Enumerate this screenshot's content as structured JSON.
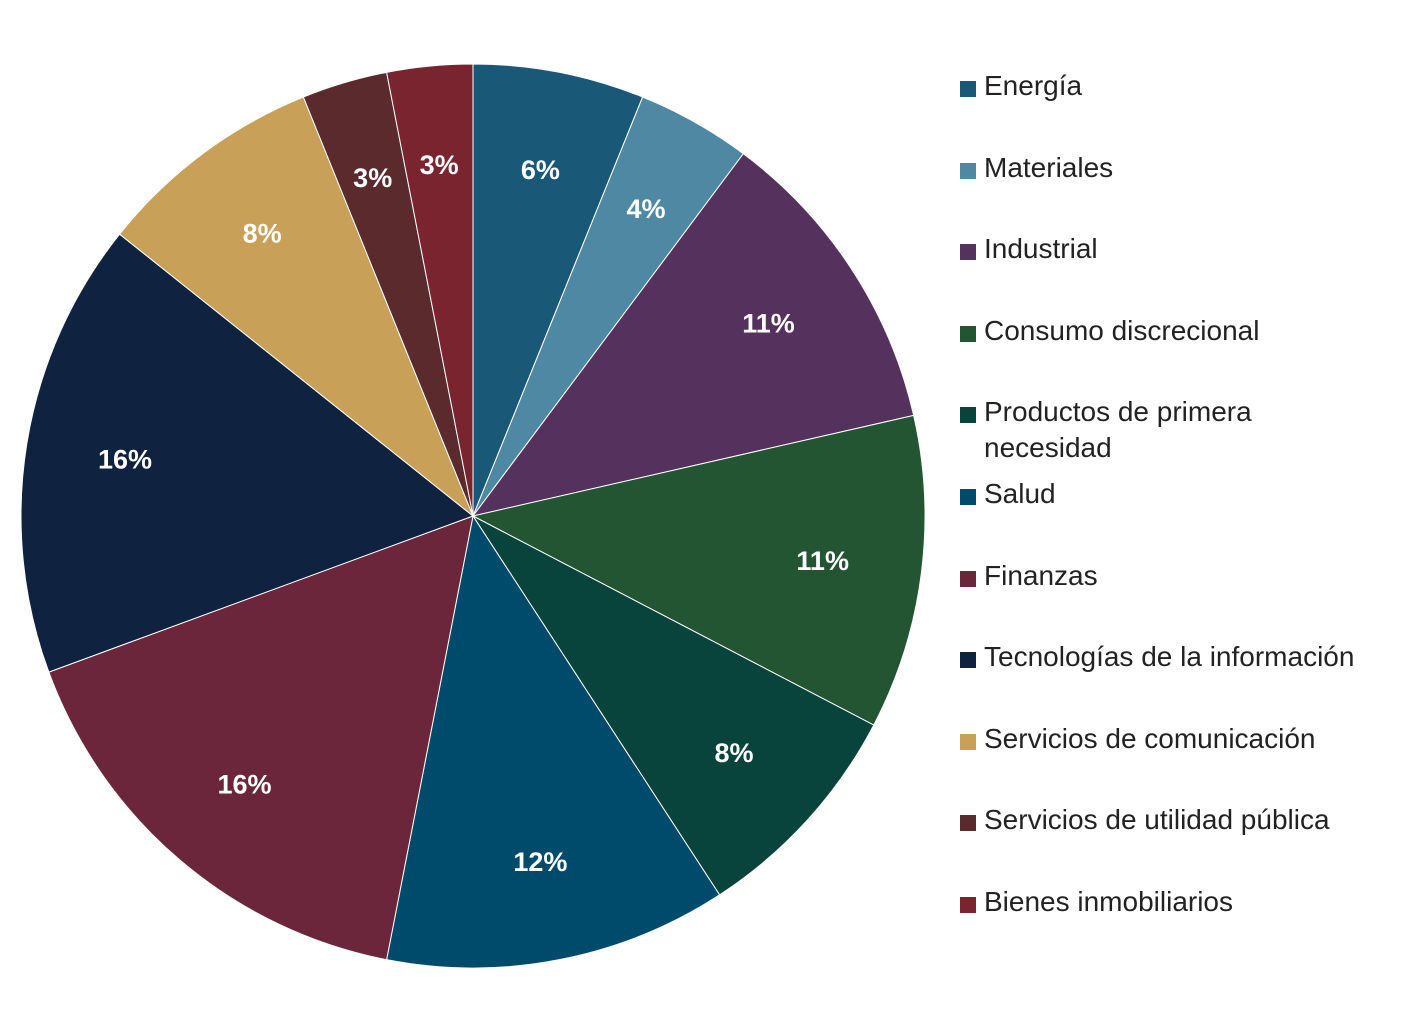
{
  "chart_data": {
    "type": "pie",
    "title": "",
    "legend_position": "right",
    "slices": [
      {
        "name": "Energía",
        "value": 6,
        "label": "6%",
        "color": "#1a5877"
      },
      {
        "name": "Materiales",
        "value": 4,
        "label": "4%",
        "color": "#4f88a2"
      },
      {
        "name": "Industrial",
        "value": 11,
        "label": "11%",
        "color": "#55325e"
      },
      {
        "name": "Consumo discrecional",
        "value": 11,
        "label": "11%",
        "color": "#235533"
      },
      {
        "name": "Productos de primera necesidad",
        "value": 8,
        "label": "8%",
        "color": "#08443b"
      },
      {
        "name": "Salud",
        "value": 12,
        "label": "12%",
        "color": "#004b6b"
      },
      {
        "name": "Finanzas",
        "value": 16,
        "label": "16%",
        "color": "#6b263c"
      },
      {
        "name": "Tecnologías de la información",
        "value": 16,
        "label": "16%",
        "color": "#0f2340"
      },
      {
        "name": "Servicios de comunicación",
        "value": 8,
        "label": "8%",
        "color": "#c9a057"
      },
      {
        "name": "Servicios de utilidad pública",
        "value": 3,
        "label": "3%",
        "color": "#5a2a2c"
      },
      {
        "name": "Bienes inmobiliarios",
        "value": 3,
        "label": "3%",
        "color": "#7a2430"
      }
    ]
  }
}
